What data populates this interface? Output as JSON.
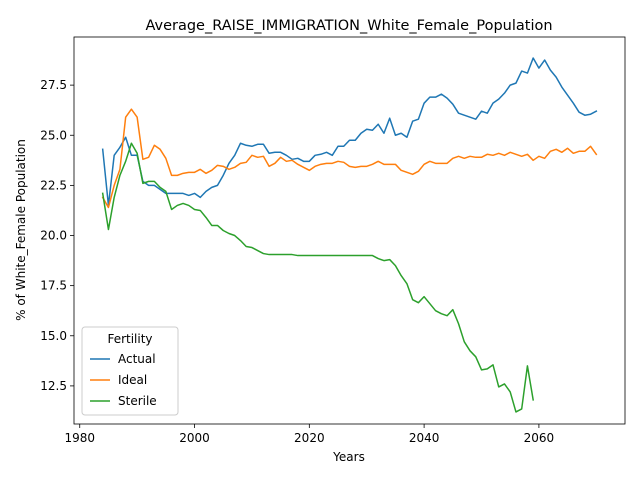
{
  "chart_data": {
    "type": "line",
    "title": "Average_RAISE_IMMIGRATION_White_Female_Population",
    "xlabel": "Years",
    "ylabel": "% of White_Female Population",
    "xlim": [
      1979,
      2075
    ],
    "ylim": [
      10.6,
      29.9
    ],
    "xticks": [
      1980,
      2000,
      2020,
      2040,
      2060
    ],
    "yticks": [
      12.5,
      15.0,
      17.5,
      20.0,
      22.5,
      25.0,
      27.5
    ],
    "ytick_labels": [
      "12.5",
      "15.0",
      "17.5",
      "20.0",
      "22.5",
      "25.0",
      "27.5"
    ],
    "grid": false,
    "legend": {
      "title": "Fertility",
      "position": "lower-left"
    },
    "series": [
      {
        "name": "Actual",
        "color": "#1f77b4",
        "x": [
          1984,
          1985,
          1986,
          1987,
          1988,
          1989,
          1990,
          1991,
          1992,
          1993,
          1994,
          1995,
          1996,
          1997,
          1998,
          1999,
          2000,
          2001,
          2002,
          2003,
          2004,
          2005,
          2006,
          2007,
          2008,
          2009,
          2010,
          2011,
          2012,
          2013,
          2014,
          2015,
          2016,
          2017,
          2018,
          2019,
          2020,
          2021,
          2022,
          2023,
          2024,
          2025,
          2026,
          2027,
          2028,
          2029,
          2030,
          2031,
          2032,
          2033,
          2034,
          2035,
          2036,
          2037,
          2038,
          2039,
          2040,
          2041,
          2042,
          2043,
          2044,
          2045,
          2046,
          2047,
          2048,
          2049,
          2050,
          2051,
          2052,
          2053,
          2054,
          2055,
          2056,
          2057,
          2058,
          2059,
          2060,
          2061,
          2062,
          2063,
          2064,
          2065,
          2066,
          2067,
          2068,
          2069,
          2070
        ],
        "values": [
          24.3,
          21.5,
          24.0,
          24.4,
          24.9,
          24.0,
          24.0,
          22.7,
          22.5,
          22.5,
          22.3,
          22.1,
          22.1,
          22.1,
          22.1,
          22.0,
          22.1,
          21.9,
          22.2,
          22.4,
          22.5,
          23.0,
          23.6,
          24.0,
          24.6,
          24.5,
          24.45,
          24.55,
          24.55,
          24.1,
          24.15,
          24.15,
          24.0,
          23.8,
          23.85,
          23.7,
          23.7,
          24.0,
          24.05,
          24.15,
          24.0,
          24.45,
          24.45,
          24.75,
          24.75,
          25.1,
          25.3,
          25.25,
          25.55,
          25.1,
          25.85,
          25.0,
          25.1,
          24.9,
          25.7,
          25.8,
          26.6,
          26.9,
          26.9,
          27.05,
          26.85,
          26.55,
          26.1,
          26.0,
          25.9,
          25.8,
          26.2,
          26.1,
          26.6,
          26.8,
          27.1,
          27.5,
          27.6,
          28.2,
          28.1,
          28.85,
          28.35,
          28.75,
          28.25,
          27.9,
          27.4,
          27.0,
          26.6,
          26.15,
          26.0,
          26.05,
          26.2
        ]
      },
      {
        "name": "Ideal",
        "color": "#ff7f0e",
        "x": [
          1984,
          1985,
          1986,
          1987,
          1988,
          1989,
          1990,
          1991,
          1992,
          1993,
          1994,
          1995,
          1996,
          1997,
          1998,
          1999,
          2000,
          2001,
          2002,
          2003,
          2004,
          2005,
          2006,
          2007,
          2008,
          2009,
          2010,
          2011,
          2012,
          2013,
          2014,
          2015,
          2016,
          2017,
          2018,
          2019,
          2020,
          2021,
          2022,
          2023,
          2024,
          2025,
          2026,
          2027,
          2028,
          2029,
          2030,
          2031,
          2032,
          2033,
          2034,
          2035,
          2036,
          2037,
          2038,
          2039,
          2040,
          2041,
          2042,
          2043,
          2044,
          2045,
          2046,
          2047,
          2048,
          2049,
          2050,
          2051,
          2052,
          2053,
          2054,
          2055,
          2056,
          2057,
          2058,
          2059,
          2060,
          2061,
          2062,
          2063,
          2064,
          2065,
          2066,
          2067,
          2068,
          2069,
          2070
        ],
        "values": [
          21.9,
          21.4,
          22.5,
          23.3,
          25.9,
          26.3,
          25.9,
          23.8,
          23.9,
          24.5,
          24.3,
          23.85,
          23.0,
          23.0,
          23.1,
          23.15,
          23.15,
          23.3,
          23.1,
          23.25,
          23.5,
          23.45,
          23.3,
          23.4,
          23.6,
          23.65,
          24.0,
          23.9,
          23.95,
          23.45,
          23.6,
          23.9,
          23.7,
          23.75,
          23.55,
          23.4,
          23.25,
          23.45,
          23.55,
          23.6,
          23.6,
          23.7,
          23.65,
          23.45,
          23.4,
          23.45,
          23.45,
          23.55,
          23.7,
          23.55,
          23.55,
          23.55,
          23.25,
          23.15,
          23.05,
          23.2,
          23.55,
          23.7,
          23.6,
          23.6,
          23.6,
          23.85,
          23.95,
          23.85,
          23.95,
          23.9,
          23.9,
          24.05,
          24.0,
          24.1,
          24.0,
          24.15,
          24.05,
          23.95,
          24.05,
          23.75,
          23.95,
          23.85,
          24.2,
          24.3,
          24.15,
          24.35,
          24.1,
          24.2,
          24.2,
          24.45,
          24.05
        ]
      },
      {
        "name": "Sterile",
        "color": "#2ca02c",
        "x": [
          1984,
          1985,
          1986,
          1987,
          1988,
          1989,
          1990,
          1991,
          1992,
          1993,
          1994,
          1995,
          1996,
          1997,
          1998,
          1999,
          2000,
          2001,
          2002,
          2003,
          2004,
          2005,
          2006,
          2007,
          2008,
          2009,
          2010,
          2011,
          2012,
          2013,
          2014,
          2015,
          2016,
          2017,
          2018,
          2019,
          2020,
          2021,
          2022,
          2023,
          2024,
          2025,
          2026,
          2027,
          2028,
          2029,
          2030,
          2031,
          2032,
          2033,
          2034,
          2035,
          2036,
          2037,
          2038,
          2039,
          2040,
          2041,
          2042,
          2043,
          2044,
          2045,
          2046,
          2047,
          2048,
          2049,
          2050,
          2051,
          2052,
          2053,
          2054,
          2055,
          2056,
          2057,
          2058,
          2059
        ],
        "values": [
          22.1,
          20.3,
          21.9,
          23.0,
          23.7,
          24.6,
          24.1,
          22.6,
          22.7,
          22.7,
          22.4,
          22.2,
          21.3,
          21.5,
          21.6,
          21.5,
          21.3,
          21.25,
          20.9,
          20.5,
          20.5,
          20.25,
          20.1,
          20.0,
          19.75,
          19.45,
          19.4,
          19.25,
          19.1,
          19.05,
          19.05,
          19.05,
          19.05,
          19.05,
          19.0,
          19.0,
          19.0,
          19.0,
          19.0,
          19.0,
          19.0,
          19.0,
          19.0,
          19.0,
          19.0,
          19.0,
          19.0,
          19.0,
          18.85,
          18.75,
          18.8,
          18.5,
          18.0,
          17.6,
          16.8,
          16.65,
          16.95,
          16.6,
          16.25,
          16.1,
          16.0,
          16.3,
          15.6,
          14.7,
          14.25,
          13.95,
          13.3,
          13.35,
          13.55,
          12.45,
          12.6,
          12.2,
          11.2,
          11.35,
          13.5,
          11.8
        ]
      }
    ]
  }
}
